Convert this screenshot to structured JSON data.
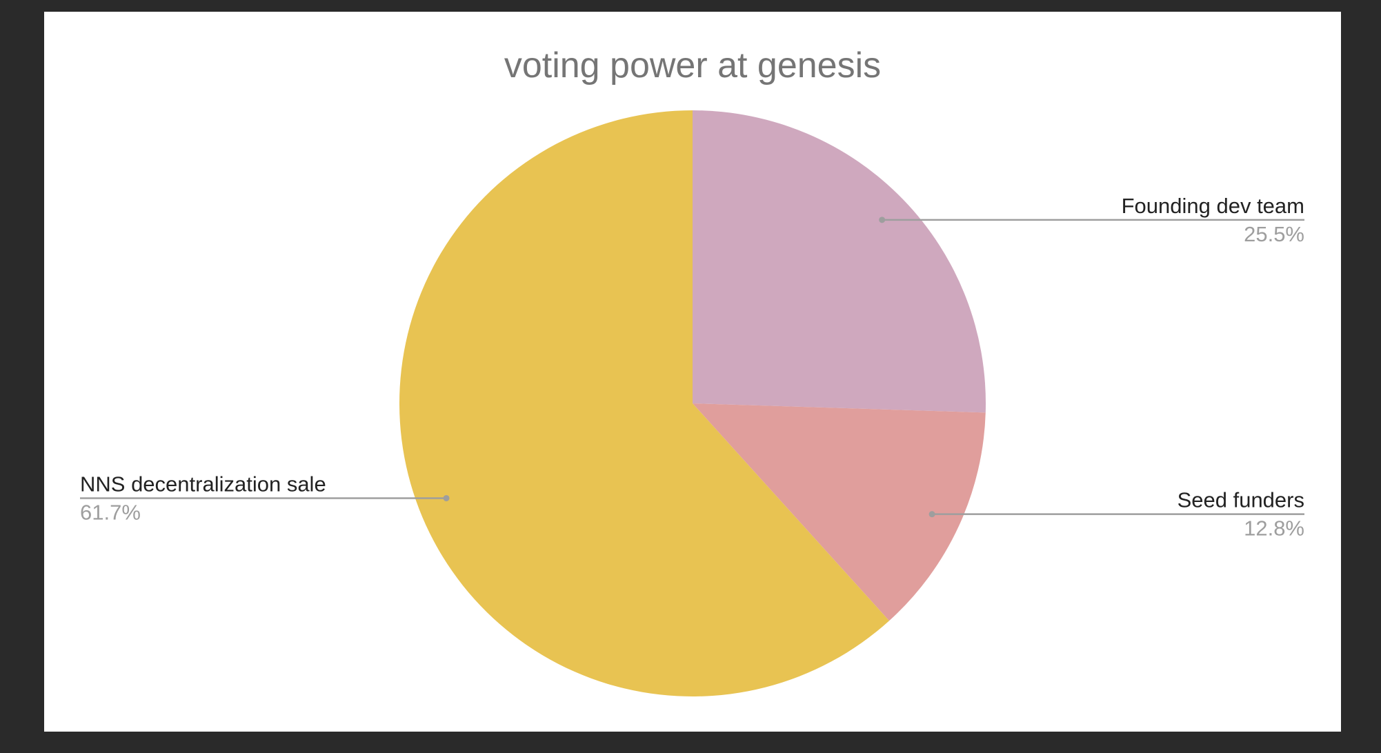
{
  "chart_data": {
    "type": "pie",
    "title": "voting power at genesis",
    "slices": [
      {
        "name": "Founding dev team",
        "value": 25.5,
        "label": "25.5%",
        "color": "#cfa8be",
        "side": "right"
      },
      {
        "name": "Seed funders",
        "value": 12.8,
        "label": "12.8%",
        "color": "#e09e9c",
        "side": "right"
      },
      {
        "name": "NNS decentralization sale",
        "value": 61.7,
        "label": "61.7%",
        "color": "#e8c352",
        "side": "left"
      }
    ],
    "start_angle": "12 o'clock",
    "direction": "clockwise",
    "leader_line_color": "#9e9e9e",
    "background": "#ffffff"
  }
}
